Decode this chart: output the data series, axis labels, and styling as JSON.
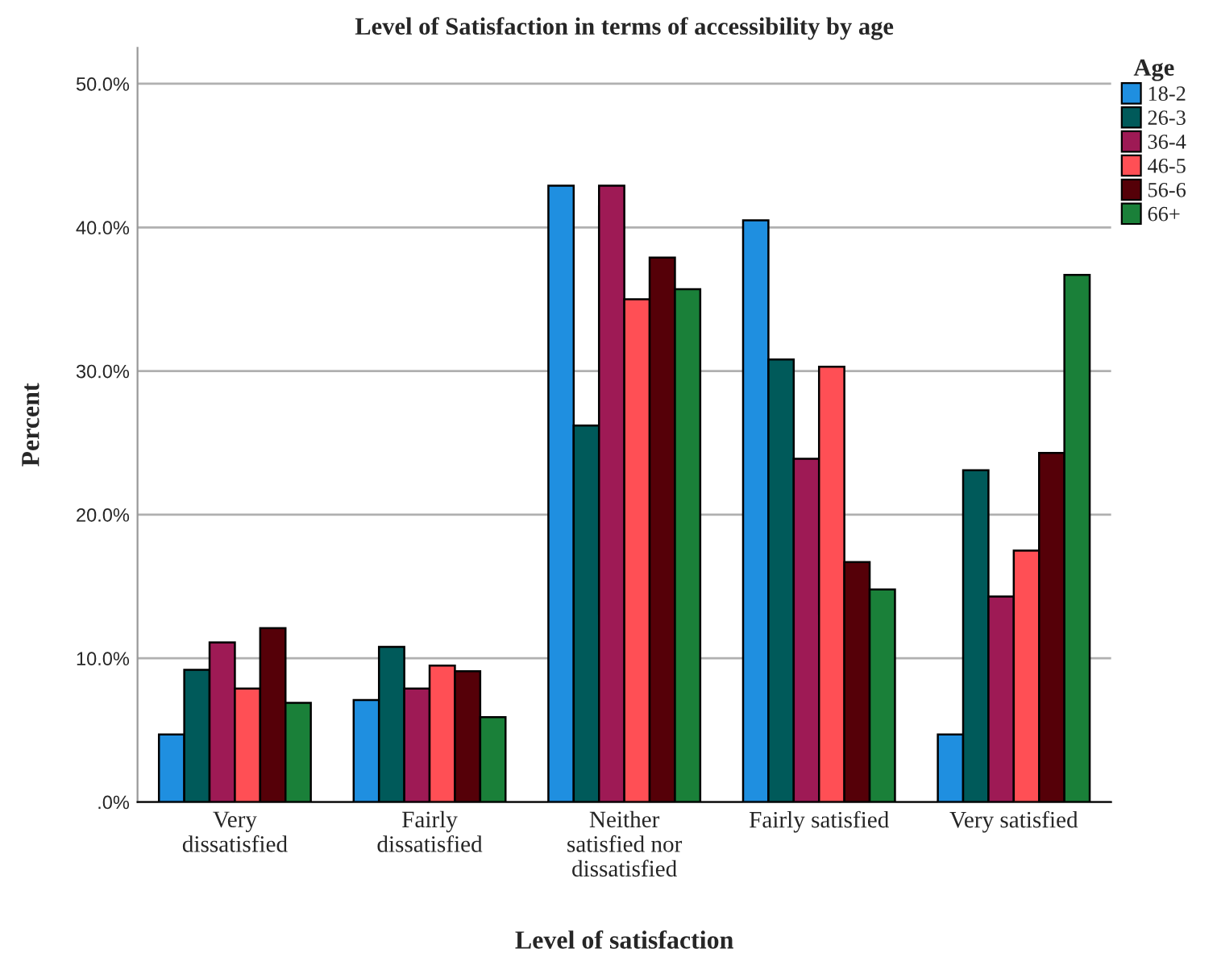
{
  "chart_data": {
    "type": "bar",
    "title": "Level of Satisfaction in terms of accessibility by age",
    "xlabel": "Level of satisfaction",
    "ylabel": "Percent",
    "legend_title": "Age",
    "categories": [
      "Very\ndissatisfied",
      "Fairly\ndissatisfied",
      "Neither\nsatisfied nor\ndissatisfied",
      "Fairly satisfied",
      "Very satisfied"
    ],
    "series": [
      {
        "name": "18-2",
        "color": "#1f8fe0",
        "values": [
          4.7,
          7.1,
          42.9,
          40.5,
          4.7
        ]
      },
      {
        "name": "26-3",
        "color": "#005a5a",
        "values": [
          9.2,
          10.8,
          26.2,
          30.8,
          23.1
        ]
      },
      {
        "name": "36-4",
        "color": "#9e1a55",
        "values": [
          11.1,
          7.9,
          42.9,
          23.9,
          14.3
        ]
      },
      {
        "name": "46-5",
        "color": "#ff4f55",
        "values": [
          7.9,
          9.5,
          35.0,
          30.3,
          17.5
        ]
      },
      {
        "name": "56-6",
        "color": "#550008",
        "values": [
          12.1,
          9.1,
          37.9,
          16.7,
          24.3
        ]
      },
      {
        "name": "66+",
        "color": "#1a8039",
        "values": [
          6.9,
          5.9,
          35.7,
          14.8,
          36.7
        ]
      }
    ],
    "ylim": [
      0,
      52.5
    ],
    "yticks": [
      {
        "value": 0,
        "label": ".0%"
      },
      {
        "value": 10,
        "label": "10.0%"
      },
      {
        "value": 20,
        "label": "20.0%"
      },
      {
        "value": 30,
        "label": "30.0%"
      },
      {
        "value": 40,
        "label": "40.0%"
      },
      {
        "value": 50,
        "label": "50.0%"
      }
    ],
    "grid": "y",
    "legend": "top right"
  }
}
